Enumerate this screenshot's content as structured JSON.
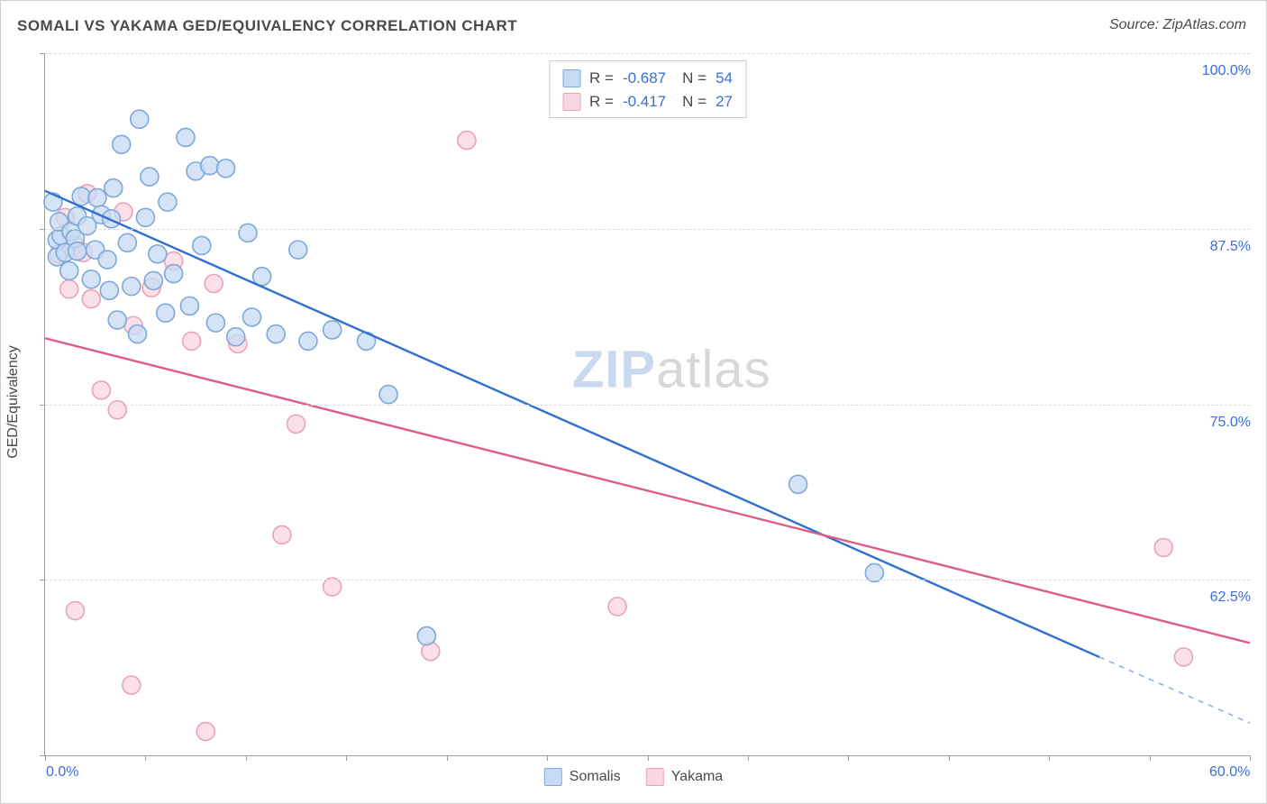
{
  "title": "SOMALI VS YAKAMA GED/EQUIVALENCY CORRELATION CHART",
  "source": "Source: ZipAtlas.com",
  "y_axis_title": "GED/Equivalency",
  "watermark": {
    "left": "ZIP",
    "right": "atlas"
  },
  "chart": {
    "type": "scatter",
    "xlim": [
      0,
      60
    ],
    "ylim": [
      50,
      100
    ],
    "x_ticks": [
      0,
      5,
      10,
      15,
      20,
      25,
      30,
      35,
      40,
      45,
      50,
      55,
      60
    ],
    "y_ticks": [
      50,
      62.5,
      75,
      87.5,
      100
    ],
    "x_tick_labels": {
      "0": "0.0%",
      "60": "60.0%"
    },
    "y_tick_labels": {
      "62.5": "62.5%",
      "75": "75.0%",
      "87.5": "87.5%",
      "100": "100.0%"
    },
    "grid_color": "#d9dce0",
    "axis_color": "#9aa0a6",
    "background_color": "#ffffff",
    "point_radius": 10,
    "point_stroke_width": 1.6,
    "line_width": 2.4,
    "series": [
      {
        "name": "Somalis",
        "fill": "#c6dbf3",
        "stroke": "#7fa8da",
        "line_color": "#2f6fd0",
        "r_value": "-0.687",
        "n_value": "54",
        "regression": {
          "x1": 0,
          "y1": 90.2,
          "x2": 52.5,
          "y2": 57.0,
          "dash_x2": 60,
          "dash_y2": 52.3
        },
        "points": [
          [
            0.6,
            85.5
          ],
          [
            0.6,
            86.7
          ],
          [
            0.8,
            87.0
          ],
          [
            0.7,
            88.0
          ],
          [
            0.4,
            89.4
          ],
          [
            1.0,
            85.8
          ],
          [
            1.3,
            87.3
          ],
          [
            1.2,
            84.5
          ],
          [
            1.5,
            86.8
          ],
          [
            1.6,
            88.4
          ],
          [
            1.6,
            85.9
          ],
          [
            1.8,
            89.8
          ],
          [
            2.1,
            87.7
          ],
          [
            2.3,
            83.9
          ],
          [
            2.5,
            86.0
          ],
          [
            2.6,
            89.7
          ],
          [
            2.8,
            88.5
          ],
          [
            3.1,
            85.3
          ],
          [
            3.2,
            83.1
          ],
          [
            3.3,
            88.2
          ],
          [
            3.4,
            90.4
          ],
          [
            3.6,
            81.0
          ],
          [
            3.8,
            93.5
          ],
          [
            4.1,
            86.5
          ],
          [
            4.3,
            83.4
          ],
          [
            4.6,
            80.0
          ],
          [
            4.7,
            95.3
          ],
          [
            5.0,
            88.3
          ],
          [
            5.2,
            91.2
          ],
          [
            5.4,
            83.8
          ],
          [
            5.6,
            85.7
          ],
          [
            6.0,
            81.5
          ],
          [
            6.1,
            89.4
          ],
          [
            6.4,
            84.3
          ],
          [
            7.0,
            94.0
          ],
          [
            7.2,
            82.0
          ],
          [
            7.5,
            91.6
          ],
          [
            7.8,
            86.3
          ],
          [
            8.2,
            92.0
          ],
          [
            8.5,
            80.8
          ],
          [
            9.0,
            91.8
          ],
          [
            9.5,
            79.8
          ],
          [
            10.1,
            87.2
          ],
          [
            10.3,
            81.2
          ],
          [
            10.8,
            84.1
          ],
          [
            11.5,
            80.0
          ],
          [
            12.6,
            86.0
          ],
          [
            13.1,
            79.5
          ],
          [
            14.3,
            80.3
          ],
          [
            16.0,
            79.5
          ],
          [
            17.1,
            75.7
          ],
          [
            19.0,
            58.5
          ],
          [
            37.5,
            69.3
          ],
          [
            41.3,
            63.0
          ]
        ]
      },
      {
        "name": "Yakama",
        "fill": "#fad6e0",
        "stroke": "#eaa3b8",
        "line_color": "#e05c85",
        "r_value": "-0.417",
        "n_value": "27",
        "regression": {
          "x1": 0,
          "y1": 79.7,
          "x2": 60,
          "y2": 58.0
        },
        "points": [
          [
            0.7,
            85.7
          ],
          [
            1.0,
            88.3
          ],
          [
            1.2,
            83.2
          ],
          [
            1.5,
            86.3
          ],
          [
            1.9,
            85.8
          ],
          [
            2.1,
            90.0
          ],
          [
            2.3,
            82.5
          ],
          [
            1.5,
            60.3
          ],
          [
            2.8,
            76.0
          ],
          [
            3.6,
            74.6
          ],
          [
            3.9,
            88.7
          ],
          [
            4.3,
            55.0
          ],
          [
            4.4,
            80.6
          ],
          [
            5.3,
            83.3
          ],
          [
            6.4,
            85.2
          ],
          [
            7.3,
            79.5
          ],
          [
            8.0,
            51.7
          ],
          [
            8.4,
            83.6
          ],
          [
            9.6,
            79.3
          ],
          [
            11.8,
            65.7
          ],
          [
            12.5,
            73.6
          ],
          [
            14.3,
            62.0
          ],
          [
            19.2,
            57.4
          ],
          [
            21.0,
            93.8
          ],
          [
            28.5,
            60.6
          ],
          [
            55.7,
            64.8
          ],
          [
            56.7,
            57.0
          ]
        ]
      }
    ]
  },
  "legend_bottom": [
    {
      "label": "Somalis",
      "fill": "#c6dbf3",
      "stroke": "#7fa8da"
    },
    {
      "label": "Yakama",
      "fill": "#fad6e0",
      "stroke": "#eaa3b8"
    }
  ],
  "colors": {
    "title_text": "#4a4a4a",
    "value_text": "#3b6fd6"
  },
  "fontsize": {
    "title": 17,
    "axis_label": 16,
    "tick": 16,
    "legend": 17,
    "watermark": 58
  }
}
